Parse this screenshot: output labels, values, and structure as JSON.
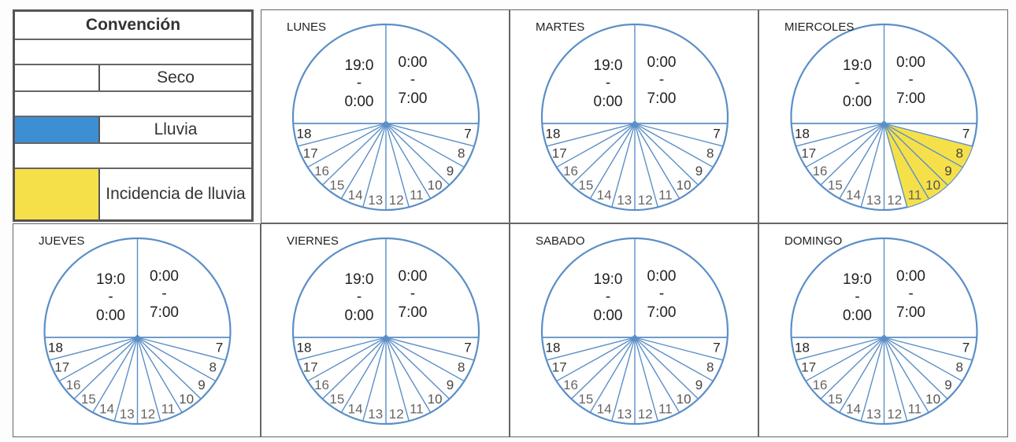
{
  "legend": {
    "title": "Convención",
    "rows": [
      {
        "label": "Seco",
        "color": "#ffffff"
      },
      {
        "label": "Lluvia",
        "color": "#3d8fd4"
      },
      {
        "label": "Incidencia de lluvia",
        "color": "#f6e04a"
      }
    ]
  },
  "colors": {
    "line": "#5b8fc7",
    "rain": "#3d8fd4",
    "incidence": "#f6e04a",
    "dry": "#ffffff"
  },
  "center": {
    "left": [
      "19:0",
      "-",
      "0:00"
    ],
    "right": [
      "0:00",
      "-",
      "7:00"
    ]
  },
  "hours": [
    "7",
    "8",
    "9",
    "10",
    "11",
    "12",
    "13",
    "14",
    "15",
    "16",
    "17",
    "18"
  ],
  "days": [
    {
      "name": "LUNES",
      "incidence": []
    },
    {
      "name": "MARTES",
      "incidence": []
    },
    {
      "name": "MIERCOLES",
      "incidence": [
        "8",
        "9",
        "10",
        "11"
      ]
    },
    {
      "name": "JUEVES",
      "incidence": []
    },
    {
      "name": "VIERNES",
      "incidence": []
    },
    {
      "name": "SABADO",
      "incidence": []
    },
    {
      "name": "DOMINGO",
      "incidence": []
    }
  ]
}
